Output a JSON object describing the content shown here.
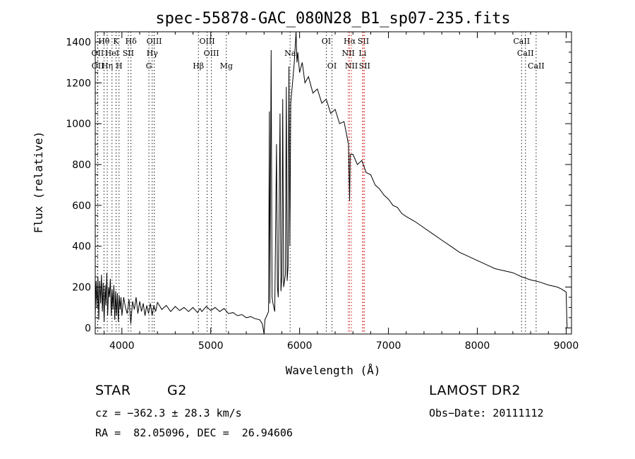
{
  "chart_data": {
    "type": "line",
    "title": "spec-55878-GAC_080N28_B1_sp07-235.fits",
    "xlabel": "Wavelength (Å)",
    "ylabel": "Flux (relative)",
    "xlim": [
      3700,
      9060
    ],
    "ylim": [
      -30,
      1450
    ],
    "xticks": [
      4000,
      5000,
      6000,
      7000,
      8000,
      9000
    ],
    "yticks": [
      0,
      200,
      400,
      600,
      800,
      1000,
      1200,
      1400
    ],
    "grid": false,
    "series": [
      {
        "color": "#000000",
        "points": [
          [
            3700,
            60
          ],
          [
            3710,
            230
          ],
          [
            3720,
            100
          ],
          [
            3730,
            250
          ],
          [
            3740,
            40
          ],
          [
            3750,
            230
          ],
          [
            3760,
            120
          ],
          [
            3770,
            260
          ],
          [
            3780,
            80
          ],
          [
            3790,
            220
          ],
          [
            3800,
            30
          ],
          [
            3810,
            210
          ],
          [
            3820,
            110
          ],
          [
            3830,
            270
          ],
          [
            3840,
            60
          ],
          [
            3850,
            200
          ],
          [
            3860,
            150
          ],
          [
            3870,
            240
          ],
          [
            3880,
            60
          ],
          [
            3890,
            190
          ],
          [
            3900,
            90
          ],
          [
            3910,
            210
          ],
          [
            3920,
            40
          ],
          [
            3930,
            180
          ],
          [
            3940,
            60
          ],
          [
            3950,
            170
          ],
          [
            3960,
            30
          ],
          [
            3970,
            160
          ],
          [
            3980,
            90
          ],
          [
            3990,
            150
          ],
          [
            4000,
            60
          ],
          [
            4020,
            150
          ],
          [
            4040,
            100
          ],
          [
            4060,
            70
          ],
          [
            4080,
            140
          ],
          [
            4100,
            20
          ],
          [
            4120,
            130
          ],
          [
            4140,
            90
          ],
          [
            4160,
            150
          ],
          [
            4180,
            70
          ],
          [
            4200,
            130
          ],
          [
            4220,
            80
          ],
          [
            4240,
            120
          ],
          [
            4260,
            60
          ],
          [
            4280,
            110
          ],
          [
            4300,
            70
          ],
          [
            4320,
            120
          ],
          [
            4340,
            60
          ],
          [
            4360,
            110
          ],
          [
            4380,
            80
          ],
          [
            4400,
            125
          ],
          [
            4450,
            90
          ],
          [
            4500,
            110
          ],
          [
            4550,
            80
          ],
          [
            4600,
            105
          ],
          [
            4650,
            85
          ],
          [
            4700,
            100
          ],
          [
            4750,
            80
          ],
          [
            4800,
            100
          ],
          [
            4850,
            75
          ],
          [
            4880,
            95
          ],
          [
            4900,
            80
          ],
          [
            4950,
            105
          ],
          [
            5000,
            85
          ],
          [
            5050,
            100
          ],
          [
            5100,
            80
          ],
          [
            5150,
            95
          ],
          [
            5200,
            70
          ],
          [
            5250,
            75
          ],
          [
            5300,
            60
          ],
          [
            5350,
            65
          ],
          [
            5400,
            50
          ],
          [
            5450,
            55
          ],
          [
            5500,
            45
          ],
          [
            5550,
            40
          ],
          [
            5580,
            20
          ],
          [
            5600,
            -30
          ],
          [
            5610,
            40
          ],
          [
            5630,
            60
          ],
          [
            5650,
            80
          ],
          [
            5660,
            1060
          ],
          [
            5665,
            120
          ],
          [
            5680,
            1360
          ],
          [
            5690,
            150
          ],
          [
            5700,
            120
          ],
          [
            5720,
            80
          ],
          [
            5740,
            900
          ],
          [
            5750,
            200
          ],
          [
            5760,
            150
          ],
          [
            5780,
            1050
          ],
          [
            5790,
            180
          ],
          [
            5800,
            250
          ],
          [
            5810,
            1120
          ],
          [
            5820,
            200
          ],
          [
            5840,
            260
          ],
          [
            5850,
            1180
          ],
          [
            5860,
            230
          ],
          [
            5870,
            300
          ],
          [
            5880,
            1280
          ],
          [
            5890,
            400
          ],
          [
            5900,
            1100
          ],
          [
            5920,
            1200
          ],
          [
            5940,
            1300
          ],
          [
            5960,
            1450
          ],
          [
            5970,
            1300
          ],
          [
            5980,
            1350
          ],
          [
            6000,
            1250
          ],
          [
            6030,
            1300
          ],
          [
            6060,
            1200
          ],
          [
            6100,
            1230
          ],
          [
            6150,
            1150
          ],
          [
            6200,
            1170
          ],
          [
            6250,
            1100
          ],
          [
            6300,
            1120
          ],
          [
            6350,
            1050
          ],
          [
            6400,
            1070
          ],
          [
            6450,
            1000
          ],
          [
            6500,
            1010
          ],
          [
            6550,
            900
          ],
          [
            6563,
            620
          ],
          [
            6570,
            850
          ],
          [
            6600,
            850
          ],
          [
            6650,
            800
          ],
          [
            6700,
            820
          ],
          [
            6750,
            760
          ],
          [
            6800,
            750
          ],
          [
            6850,
            700
          ],
          [
            6900,
            680
          ],
          [
            6950,
            650
          ],
          [
            7000,
            630
          ],
          [
            7050,
            600
          ],
          [
            7100,
            590
          ],
          [
            7150,
            560
          ],
          [
            7200,
            545
          ],
          [
            7300,
            520
          ],
          [
            7400,
            490
          ],
          [
            7500,
            460
          ],
          [
            7600,
            430
          ],
          [
            7700,
            400
          ],
          [
            7800,
            370
          ],
          [
            7900,
            350
          ],
          [
            8000,
            330
          ],
          [
            8100,
            310
          ],
          [
            8200,
            290
          ],
          [
            8300,
            280
          ],
          [
            8400,
            270
          ],
          [
            8500,
            250
          ],
          [
            8600,
            235
          ],
          [
            8700,
            225
          ],
          [
            8800,
            210
          ],
          [
            8900,
            200
          ],
          [
            8950,
            190
          ],
          [
            9000,
            175
          ],
          [
            9010,
            0
          ]
        ]
      }
    ],
    "lines": [
      {
        "label": "Hθ",
        "wave": 3798,
        "row": 1,
        "color": "black"
      },
      {
        "label": "K",
        "wave": 3934,
        "row": 1,
        "color": "black"
      },
      {
        "label": "Hδ",
        "wave": 4102,
        "row": 1,
        "color": "black"
      },
      {
        "label": "OIII",
        "wave": 4363,
        "row": 1,
        "color": "black"
      },
      {
        "label": "OIII",
        "wave": 4959,
        "row": 1,
        "color": "black"
      },
      {
        "label": "OI",
        "wave": 6300,
        "row": 1,
        "color": "black"
      },
      {
        "label": "Hα",
        "wave": 6563,
        "row": 1,
        "color": "red"
      },
      {
        "label": "SII",
        "wave": 6717,
        "row": 1,
        "color": "red"
      },
      {
        "label": "CaII",
        "wave": 8498,
        "row": 1,
        "color": "black"
      },
      {
        "label": "OII",
        "wave": 3727,
        "row": 2,
        "color": "black"
      },
      {
        "label": "HeI",
        "wave": 3889,
        "row": 2,
        "color": "black"
      },
      {
        "label": "SII",
        "wave": 4072,
        "row": 2,
        "color": "black"
      },
      {
        "label": "Hγ",
        "wave": 4341,
        "row": 2,
        "color": "black"
      },
      {
        "label": "OIII",
        "wave": 5007,
        "row": 2,
        "color": "black"
      },
      {
        "label": "Na",
        "wave": 5893,
        "row": 2,
        "color": "black"
      },
      {
        "label": "NII",
        "wave": 6548,
        "row": 2,
        "color": "red"
      },
      {
        "label": "Li",
        "wave": 6708,
        "row": 2,
        "color": "red"
      },
      {
        "label": "CaII",
        "wave": 8542,
        "row": 2,
        "color": "black"
      },
      {
        "label": "OII",
        "wave": 3729,
        "row": 3,
        "color": "black"
      },
      {
        "label": "Hη",
        "wave": 3835,
        "row": 3,
        "color": "black"
      },
      {
        "label": "H",
        "wave": 3968,
        "row": 3,
        "color": "black"
      },
      {
        "label": "G",
        "wave": 4304,
        "row": 3,
        "color": "black"
      },
      {
        "label": "Hβ",
        "wave": 4861,
        "row": 3,
        "color": "black"
      },
      {
        "label": "Mg",
        "wave": 5175,
        "row": 3,
        "color": "black"
      },
      {
        "label": "OI",
        "wave": 6364,
        "row": 3,
        "color": "black"
      },
      {
        "label": "NII",
        "wave": 6583,
        "row": 3,
        "color": "red"
      },
      {
        "label": "SII",
        "wave": 6731,
        "row": 3,
        "color": "red"
      },
      {
        "label": "CaII",
        "wave": 8662,
        "row": 3,
        "color": "black"
      }
    ]
  },
  "info": {
    "class": "STAR",
    "subclass": "G2",
    "survey": "LAMOST DR2",
    "cz": "cz = −362.3 ± 28.3 km/s",
    "obs_date": "Obs−Date: 20111112",
    "coords": "RA =  82.05096, DEC =  26.94606"
  }
}
